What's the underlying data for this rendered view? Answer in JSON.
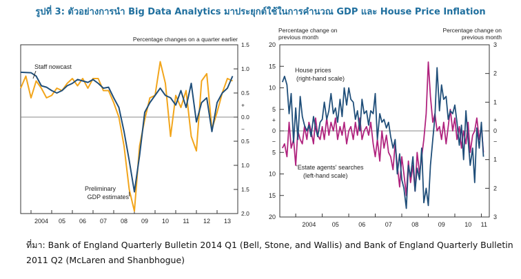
{
  "figure": {
    "title": "รูปที่ 3: ตัวอย่างการนำ Big Data Analytics มาประยุกต์ใช้ในการคำนวณ GDP และ House Price Inflation",
    "source": "ที่มา: Bank of England Quarterly Bulletin 2014 Q1 (Bell, Stone, and Wallis) and Bank of England Quarterly Bulletin 2011 Q2 (McLaren and Shanbhogue)"
  },
  "colors": {
    "orange": "#f2a51b",
    "navy": "#1f4e79",
    "magenta": "#b0237e",
    "frame": "#333333",
    "title": "#1f6f9e"
  },
  "chart_data": [
    {
      "type": "line",
      "right_axis_label": "Percentage changes on a quarter earlier",
      "y_ticks": [
        "1.5",
        "1.0",
        "0.5",
        "+",
        "0.0",
        "−",
        "0.5",
        "1.0",
        "1.5",
        "2.0"
      ],
      "ylim": [
        -2.0,
        1.5
      ],
      "x_ticks": [
        "2004",
        "05",
        "06",
        "07",
        "08",
        "09",
        "10",
        "11",
        "12",
        "13"
      ],
      "xlim": [
        2003.5,
        2014.0
      ],
      "annotations": [
        "Staff nowcast",
        "Preliminary",
        "GDP estimates"
      ],
      "series": [
        {
          "name": "Staff nowcast",
          "color": "#1f4e79",
          "x": [
            2003.5,
            2004.0,
            2004.25,
            2004.5,
            2004.75,
            2005.0,
            2005.25,
            2005.5,
            2005.75,
            2006.0,
            2006.25,
            2006.5,
            2006.75,
            2007.0,
            2007.25,
            2007.5,
            2007.75,
            2008.0,
            2008.25,
            2008.5,
            2008.75,
            2009.0,
            2009.25,
            2009.5,
            2009.75,
            2010.0,
            2010.25,
            2010.5,
            2010.75,
            2011.0,
            2011.25,
            2011.5,
            2011.75,
            2012.0,
            2012.25,
            2012.5,
            2012.75,
            2013.0,
            2013.25,
            2013.5,
            2013.75
          ],
          "values": [
            0.93,
            0.92,
            0.85,
            0.65,
            0.62,
            0.55,
            0.5,
            0.55,
            0.65,
            0.7,
            0.78,
            0.75,
            0.72,
            0.78,
            0.7,
            0.6,
            0.62,
            0.4,
            0.2,
            -0.3,
            -0.9,
            -1.55,
            -0.8,
            0.1,
            0.3,
            0.45,
            0.6,
            0.45,
            0.4,
            0.25,
            0.55,
            0.2,
            0.7,
            -0.1,
            0.3,
            0.4,
            -0.3,
            0.3,
            0.5,
            0.6,
            0.85
          ]
        },
        {
          "name": "Preliminary GDP estimates",
          "color": "#f2a51b",
          "x": [
            2003.5,
            2003.75,
            2004.0,
            2004.25,
            2004.5,
            2004.75,
            2005.0,
            2005.25,
            2005.5,
            2005.75,
            2006.0,
            2006.25,
            2006.5,
            2006.75,
            2007.0,
            2007.25,
            2007.5,
            2007.75,
            2008.0,
            2008.25,
            2008.5,
            2008.75,
            2009.0,
            2009.25,
            2009.5,
            2009.75,
            2010.0,
            2010.25,
            2010.5,
            2010.75,
            2011.0,
            2011.25,
            2011.5,
            2011.75,
            2012.0,
            2012.25,
            2012.5,
            2012.75,
            2013.0,
            2013.25,
            2013.5,
            2013.75
          ],
          "values": [
            0.6,
            0.85,
            0.4,
            0.75,
            0.6,
            0.4,
            0.45,
            0.6,
            0.55,
            0.7,
            0.8,
            0.65,
            0.8,
            0.6,
            0.8,
            0.8,
            0.55,
            0.55,
            0.3,
            0.0,
            -0.6,
            -1.5,
            -1.95,
            -0.6,
            -0.05,
            0.4,
            0.45,
            1.15,
            0.7,
            -0.4,
            0.45,
            0.2,
            0.55,
            -0.4,
            -0.7,
            0.75,
            0.9,
            -0.25,
            0.1,
            0.5,
            0.8,
            0.75
          ]
        }
      ]
    },
    {
      "type": "line",
      "left_axis_label": "Percentage change on previous month",
      "right_axis_label": "Percentage change on previous month",
      "y_ticks_left": [
        "20",
        "15",
        "10",
        "5",
        "+",
        "0",
        "−",
        "5",
        "10",
        "15",
        "20"
      ],
      "ylim_left": [
        -20,
        20
      ],
      "y_ticks_right": [
        "3",
        "2",
        "1",
        "+",
        "0",
        "−",
        "1",
        "2",
        "3"
      ],
      "ylim_right": [
        -3,
        3
      ],
      "x_ticks": [
        "2004",
        "05",
        "06",
        "07",
        "08",
        "09",
        "10",
        "11"
      ],
      "xlim": [
        2003.4,
        2011.3
      ],
      "annotations": [
        "House prices",
        "(right-hand scale)",
        "'Estate agents' searches",
        "(left-hand scale)"
      ],
      "series": [
        {
          "name": "House prices (right-hand scale)",
          "axis": "right",
          "color": "#1f4e79",
          "x": [
            2003.5,
            2003.58,
            2003.67,
            2003.75,
            2003.83,
            2003.92,
            2004.0,
            2004.08,
            2004.17,
            2004.25,
            2004.33,
            2004.42,
            2004.5,
            2004.58,
            2004.67,
            2004.75,
            2004.83,
            2004.92,
            2005.0,
            2005.08,
            2005.17,
            2005.25,
            2005.33,
            2005.42,
            2005.5,
            2005.58,
            2005.67,
            2005.75,
            2005.83,
            2005.92,
            2006.0,
            2006.08,
            2006.17,
            2006.25,
            2006.33,
            2006.42,
            2006.5,
            2006.58,
            2006.67,
            2006.75,
            2006.83,
            2006.92,
            2007.0,
            2007.08,
            2007.17,
            2007.25,
            2007.33,
            2007.42,
            2007.5,
            2007.58,
            2007.67,
            2007.75,
            2007.83,
            2007.92,
            2008.0,
            2008.08,
            2008.17,
            2008.25,
            2008.33,
            2008.42,
            2008.5,
            2008.58,
            2008.67,
            2008.75,
            2008.83,
            2008.92,
            2009.0,
            2009.08,
            2009.17,
            2009.25,
            2009.33,
            2009.42,
            2009.5,
            2009.58,
            2009.67,
            2009.75,
            2009.83,
            2009.92,
            2010.0,
            2010.08,
            2010.17,
            2010.25,
            2010.33,
            2010.42,
            2010.5,
            2010.58,
            2010.67,
            2010.75,
            2010.83,
            2010.92,
            2011.0,
            2011.08
          ],
          "values": [
            1.7,
            1.9,
            1.6,
            0.6,
            1.3,
            -0.4,
            0.8,
            -0.3,
            1.2,
            0.5,
            0.2,
            0.0,
            0.2,
            -0.2,
            0.5,
            0.1,
            -0.2,
            0.3,
            0.4,
            1.0,
            0.4,
            0.7,
            1.3,
            0.6,
            0.8,
            0.3,
            1.1,
            0.5,
            1.5,
            0.9,
            1.5,
            1.1,
            1.0,
            0.4,
            0.7,
            0.0,
            1.1,
            0.6,
            0.7,
            0.2,
            0.7,
            0.6,
            1.3,
            -0.3,
            0.6,
            0.3,
            0.4,
            0.1,
            0.3,
            -0.2,
            -0.6,
            -0.3,
            -1.5,
            -0.8,
            -1.7,
            -2.0,
            -2.7,
            -1.2,
            -1.6,
            -0.9,
            -2.1,
            -1.3,
            -1.7,
            -0.6,
            -2.5,
            -2.0,
            -2.6,
            -1.2,
            -0.3,
            0.5,
            2.2,
            0.7,
            1.6,
            1.1,
            1.2,
            0.4,
            0.7,
            0.6,
            0.9,
            0.3,
            -0.5,
            0.2,
            -1.0,
            0.7,
            -0.3,
            -1.2,
            -0.6,
            -1.8,
            0.1,
            -0.6,
            0.3,
            -0.9
          ]
        },
        {
          "name": "'Estate agents' searches (left-hand scale)",
          "axis": "left",
          "color": "#b0237e",
          "x": [
            2003.5,
            2003.58,
            2003.67,
            2003.75,
            2003.83,
            2003.92,
            2004.0,
            2004.08,
            2004.17,
            2004.25,
            2004.33,
            2004.42,
            2004.5,
            2004.58,
            2004.67,
            2004.75,
            2004.83,
            2004.92,
            2005.0,
            2005.08,
            2005.17,
            2005.25,
            2005.33,
            2005.42,
            2005.5,
            2005.58,
            2005.67,
            2005.75,
            2005.83,
            2005.92,
            2006.0,
            2006.08,
            2006.17,
            2006.25,
            2006.33,
            2006.42,
            2006.5,
            2006.58,
            2006.67,
            2006.75,
            2006.83,
            2006.92,
            2007.0,
            2007.08,
            2007.17,
            2007.25,
            2007.33,
            2007.42,
            2007.5,
            2007.58,
            2007.67,
            2007.75,
            2007.83,
            2007.92,
            2008.0,
            2008.08,
            2008.17,
            2008.25,
            2008.33,
            2008.42,
            2008.5,
            2008.58,
            2008.67,
            2008.75,
            2008.83,
            2008.92,
            2009.0,
            2009.08,
            2009.17,
            2009.25,
            2009.33,
            2009.42,
            2009.5,
            2009.58,
            2009.67,
            2009.75,
            2009.83,
            2009.92,
            2010.0,
            2010.08,
            2010.17,
            2010.25,
            2010.33,
            2010.42,
            2010.5,
            2010.58,
            2010.67,
            2010.75,
            2010.83,
            2010.92,
            2011.0,
            2011.08
          ],
          "values": [
            -4,
            -3,
            -6,
            2,
            -4,
            -2,
            -8,
            0,
            -2,
            -3,
            1,
            -2,
            2,
            0,
            -3,
            3,
            -1,
            -2,
            1,
            -2,
            3,
            -1,
            2,
            0,
            3,
            -2,
            1,
            -1,
            2,
            -3,
            0,
            1,
            -2,
            2,
            -1,
            3,
            -2,
            0,
            1,
            -1,
            2,
            -3,
            -6,
            -2,
            -7,
            0,
            -4,
            -1,
            -5,
            -6,
            -9,
            -3,
            -8,
            -13,
            -6,
            -10,
            -15,
            -7,
            -12,
            -8,
            -14,
            -5,
            -10,
            -6,
            -2,
            4,
            16,
            8,
            2,
            4,
            0,
            1,
            -2,
            2,
            -3,
            1,
            5,
            0,
            3,
            -2,
            1,
            -4,
            0,
            -3,
            2,
            -5,
            -1,
            0,
            3,
            -2,
            1,
            -5
          ]
        }
      ]
    }
  ]
}
